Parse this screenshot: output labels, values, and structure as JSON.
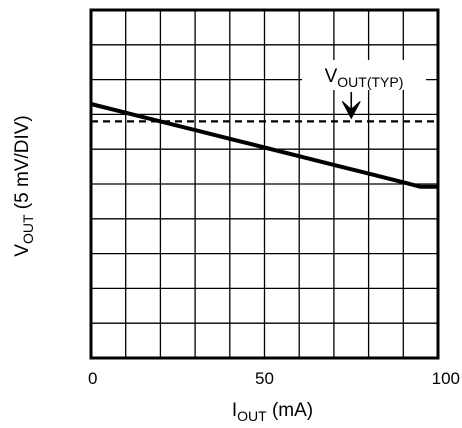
{
  "chart_data": {
    "type": "line",
    "xlabel": {
      "main": "I",
      "sub": "OUT",
      "unit": " (mA)"
    },
    "ylabel": {
      "main": "V",
      "sub": "OUT",
      "unit": " (5 mV/DIV)"
    },
    "xlim": [
      0,
      100
    ],
    "ylim": [
      0,
      10
    ],
    "x_ticks": [
      {
        "value": 0,
        "label": "0"
      },
      {
        "value": 50,
        "label": "50"
      },
      {
        "value": 100,
        "label": "100"
      }
    ],
    "grid": true,
    "grid_divisions": {
      "x": 10,
      "y": 10
    },
    "series": [
      {
        "style": "solid",
        "x": [
          0,
          10,
          20,
          30,
          40,
          50,
          60,
          70,
          80,
          90,
          95,
          100
        ],
        "y": [
          7.3,
          7.05,
          6.8,
          6.55,
          6.3,
          6.05,
          5.8,
          5.55,
          5.3,
          5.05,
          4.92,
          4.92
        ]
      },
      {
        "style": "dashed",
        "x": [
          0,
          100
        ],
        "y": [
          6.8,
          6.8
        ]
      }
    ],
    "annotation": {
      "text_main": "V",
      "text_sub": "OUT(TYP)",
      "arrow_x": 75,
      "arrow_to_y": 6.8
    }
  }
}
